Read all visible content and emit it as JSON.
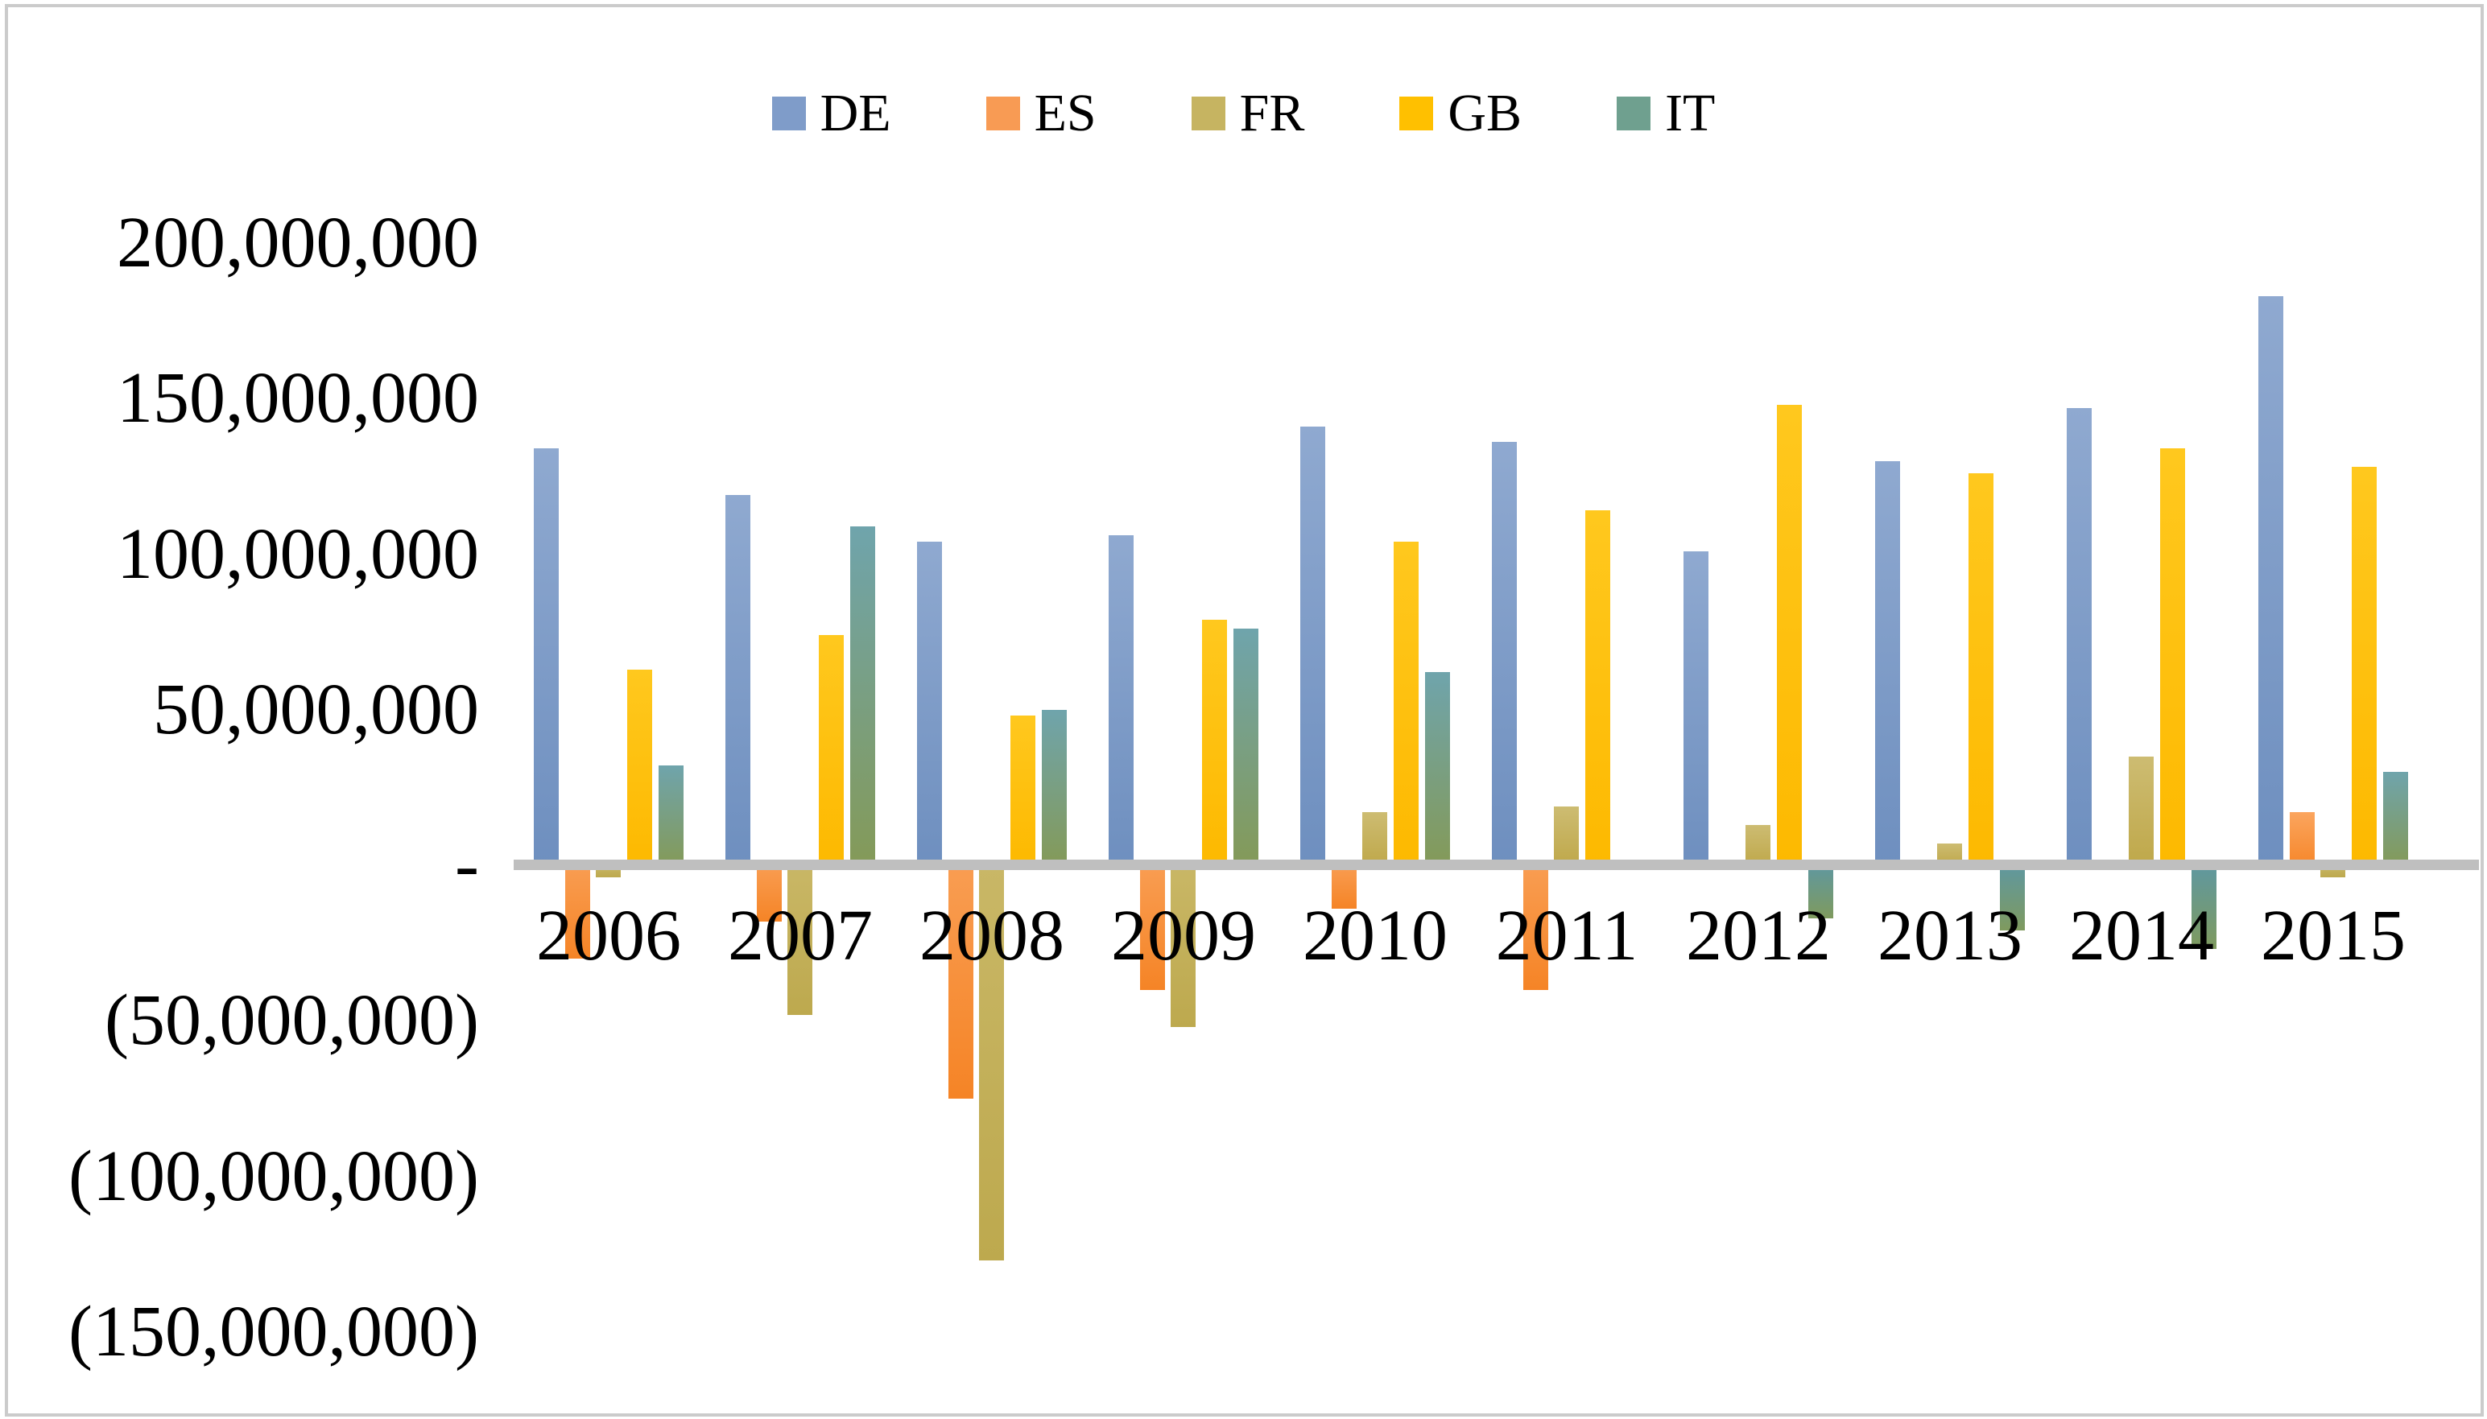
{
  "chart_data": {
    "type": "bar",
    "title": "",
    "xlabel": "",
    "ylabel": "",
    "categories": [
      "2006",
      "2007",
      "2008",
      "2009",
      "2010",
      "2011",
      "2012",
      "2013",
      "2014",
      "2015"
    ],
    "series": [
      {
        "name": "DE",
        "color": "#7f9cc9",
        "values": [
          134000000,
          119000000,
          104000000,
          106000000,
          141000000,
          136000000,
          101000000,
          130000000,
          147000000,
          183000000
        ]
      },
      {
        "name": "ES",
        "color": "#f89b54",
        "values": [
          -30000000,
          -18000000,
          -75000000,
          -40000000,
          -14000000,
          -40000000,
          0,
          0,
          0,
          17000000
        ]
      },
      {
        "name": "FR",
        "color": "#c6b461",
        "values": [
          -4000000,
          -48000000,
          -127000000,
          -52000000,
          17000000,
          19000000,
          13000000,
          7000000,
          35000000,
          -4000000
        ]
      },
      {
        "name": "GB",
        "color": "#ffc000",
        "values": [
          63000000,
          74000000,
          48000000,
          79000000,
          104000000,
          114000000,
          148000000,
          126000000,
          134000000,
          128000000
        ]
      },
      {
        "name": "IT",
        "color": "#6fa08f",
        "values": [
          32000000,
          109000000,
          50000000,
          76000000,
          62000000,
          0,
          -17000000,
          -21000000,
          -27000000,
          30000000
        ]
      }
    ],
    "ylim": [
      -150000000,
      200000000
    ],
    "y_tick_values": [
      200000000,
      150000000,
      100000000,
      50000000,
      0,
      -50000000,
      -100000000,
      -150000000
    ],
    "y_tick_labels": [
      "200,000,000",
      "150,000,000",
      "100,000,000",
      "50,000,000",
      "-",
      "(50,000,000)",
      "(100,000,000)",
      "(150,000,000)"
    ],
    "grid": "off",
    "legend_position": "top-center",
    "negative_format": "parentheses"
  },
  "legend": {
    "items": [
      {
        "label": "DE"
      },
      {
        "label": "ES"
      },
      {
        "label": "FR"
      },
      {
        "label": "GB"
      },
      {
        "label": "IT"
      }
    ]
  },
  "colors": {
    "axis_line": "#bfbfbf",
    "frame_border": "#cbcbcb",
    "background": "#ffffff"
  }
}
